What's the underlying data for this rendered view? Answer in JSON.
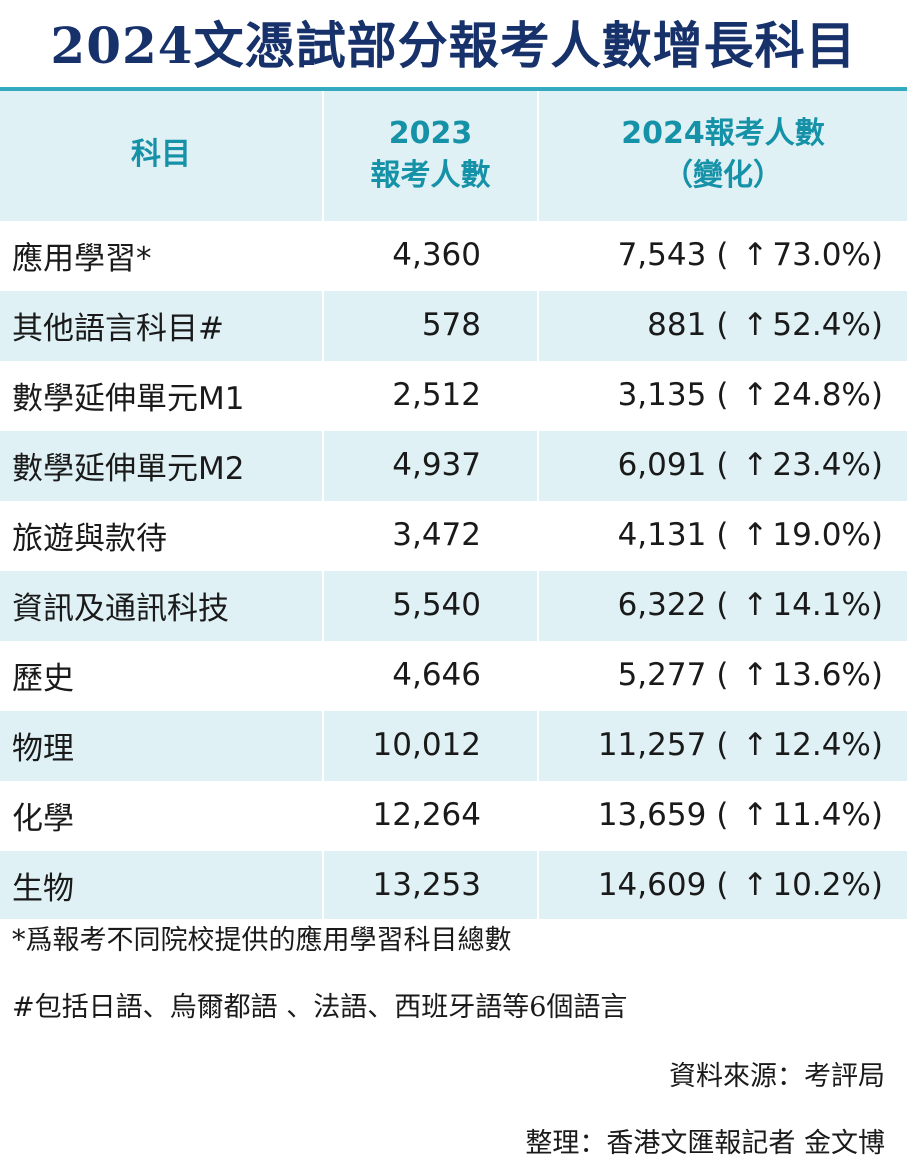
{
  "title": "2024文憑試部分報考人數增長科目",
  "columns": {
    "subject": "科目",
    "y2023_line1": "2023",
    "y2023_line2": "報考人數",
    "y2024_line1": "2024報考人數",
    "y2024_line2": "（變化）"
  },
  "rows": [
    {
      "subject": "應用學習*",
      "y2023": "4,360",
      "y2024": "7,543",
      "change": "73.0%"
    },
    {
      "subject": "其他語言科目#",
      "y2023": "578",
      "y2024": "881",
      "change": "52.4%"
    },
    {
      "subject": "數學延伸單元M1",
      "y2023": "2,512",
      "y2024": "3,135",
      "change": "24.8%"
    },
    {
      "subject": "數學延伸單元M2",
      "y2023": "4,937",
      "y2024": "6,091",
      "change": "23.4%"
    },
    {
      "subject": "旅遊與款待",
      "y2023": "3,472",
      "y2024": "4,131",
      "change": "19.0%"
    },
    {
      "subject": "資訊及通訊科技",
      "y2023": "5,540",
      "y2024": "6,322",
      "change": "14.1%"
    },
    {
      "subject": "歷史",
      "y2023": "4,646",
      "y2024": "5,277",
      "change": "13.6%"
    },
    {
      "subject": "物理",
      "y2023": "10,012",
      "y2024": "11,257",
      "change": "12.4%"
    },
    {
      "subject": "化學",
      "y2023": "12,264",
      "y2024": "13,659",
      "change": "11.4%"
    },
    {
      "subject": "生物",
      "y2023": "13,253",
      "y2024": "14,609",
      "change": "10.2%"
    }
  ],
  "symbols": {
    "paren_open": "(",
    "paren_close": ")",
    "arrow": "↑"
  },
  "notes": [
    "*爲報考不同院校提供的應用學習科目總數",
    "#包括日語、烏爾都語 、法語、西班牙語等6個語言"
  ],
  "source": "資料來源：考評局",
  "credit": "整理：香港文匯報記者 金文博",
  "colors": {
    "title": "#17316b",
    "header_text": "#1591a8",
    "band": "#dff1f5",
    "rule": "#33a9c0"
  }
}
